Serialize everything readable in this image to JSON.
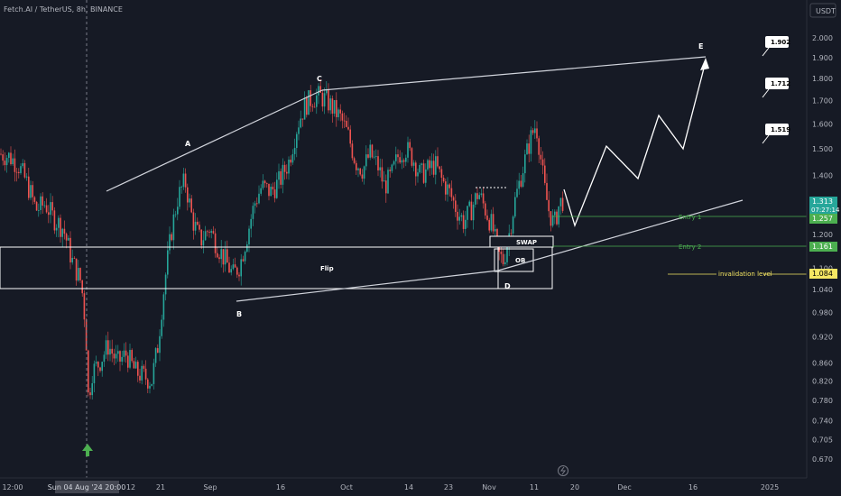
{
  "symbol": "Fetch.AI / TetherUS, 8h, BINANCE",
  "currency_badge": "USDT",
  "chart_data": {
    "type": "candlestick",
    "ylim": [
      0.645,
      2.08
    ],
    "log_scale": true,
    "y_ticks": [
      "2.000",
      "1.900",
      "1.800",
      "1.700",
      "1.600",
      "1.500",
      "1.400",
      "1.300",
      "1.200",
      "1.100",
      "1.040",
      "0.980",
      "0.920",
      "0.860",
      "0.820",
      "0.780",
      "0.740",
      "0.705",
      "0.670"
    ],
    "x_ticks": [
      "12:00",
      "Sun 04 Aug '24  20:00",
      "12",
      "21",
      "Sep",
      "16",
      "Oct",
      "14",
      "23",
      "Nov",
      "11",
      "20",
      "Dec",
      "16",
      "2025"
    ],
    "price_path": [
      [
        0,
        1.48
      ],
      [
        10,
        1.47
      ],
      [
        20,
        1.44
      ],
      [
        30,
        1.37
      ],
      [
        40,
        1.28
      ],
      [
        50,
        1.3
      ],
      [
        60,
        1.25
      ],
      [
        70,
        1.22
      ],
      [
        80,
        1.12
      ],
      [
        90,
        1.06
      ],
      [
        95,
        0.94
      ],
      [
        98,
        0.78
      ],
      [
        102,
        0.84
      ],
      [
        110,
        0.86
      ],
      [
        120,
        0.9
      ],
      [
        130,
        0.86
      ],
      [
        140,
        0.88
      ],
      [
        150,
        0.84
      ],
      [
        160,
        0.83
      ],
      [
        168,
        0.82
      ],
      [
        175,
        0.9
      ],
      [
        182,
        1.05
      ],
      [
        190,
        1.21
      ],
      [
        197,
        1.32
      ],
      [
        205,
        1.38
      ],
      [
        213,
        1.25
      ],
      [
        222,
        1.18
      ],
      [
        232,
        1.22
      ],
      [
        240,
        1.17
      ],
      [
        250,
        1.12
      ],
      [
        258,
        1.08
      ],
      [
        266,
        1.11
      ],
      [
        274,
        1.2
      ],
      [
        282,
        1.3
      ],
      [
        290,
        1.36
      ],
      [
        300,
        1.34
      ],
      [
        310,
        1.38
      ],
      [
        320,
        1.45
      ],
      [
        330,
        1.6
      ],
      [
        338,
        1.68
      ],
      [
        346,
        1.71
      ],
      [
        354,
        1.72
      ],
      [
        362,
        1.7
      ],
      [
        370,
        1.66
      ],
      [
        378,
        1.62
      ],
      [
        386,
        1.55
      ],
      [
        394,
        1.45
      ],
      [
        402,
        1.42
      ],
      [
        410,
        1.48
      ],
      [
        418,
        1.44
      ],
      [
        426,
        1.36
      ],
      [
        434,
        1.4
      ],
      [
        442,
        1.48
      ],
      [
        450,
        1.5
      ],
      [
        458,
        1.46
      ],
      [
        466,
        1.4
      ],
      [
        474,
        1.42
      ],
      [
        482,
        1.44
      ],
      [
        490,
        1.38
      ],
      [
        498,
        1.34
      ],
      [
        506,
        1.28
      ],
      [
        514,
        1.24
      ],
      [
        522,
        1.28
      ],
      [
        530,
        1.34
      ],
      [
        538,
        1.28
      ],
      [
        546,
        1.22
      ],
      [
        552,
        1.14
      ],
      [
        558,
        1.12
      ],
      [
        564,
        1.2
      ],
      [
        570,
        1.3
      ],
      [
        576,
        1.38
      ],
      [
        582,
        1.46
      ],
      [
        588,
        1.54
      ],
      [
        594,
        1.6
      ],
      [
        598,
        1.5
      ],
      [
        603,
        1.36
      ],
      [
        608,
        1.28
      ],
      [
        614,
        1.23
      ],
      [
        620,
        1.3
      ],
      [
        624,
        1.313
      ]
    ],
    "last_price": "1.313",
    "countdown": "07:27:14",
    "wave_labels": [
      "A",
      "B",
      "C",
      "D",
      "E"
    ],
    "targets": [
      "1.902",
      "1.712",
      "1.519"
    ],
    "levels": [
      {
        "label": "Entry 1",
        "value": "1.257",
        "color": "#4caf50"
      },
      {
        "label": "Entry 2",
        "value": "1.161",
        "color": "#4caf50"
      },
      {
        "label": "invalidation level",
        "value": "1.084",
        "color": "#f5e663"
      }
    ],
    "zones": [
      "SWAP",
      "OB",
      "Flip"
    ],
    "grid": false
  }
}
